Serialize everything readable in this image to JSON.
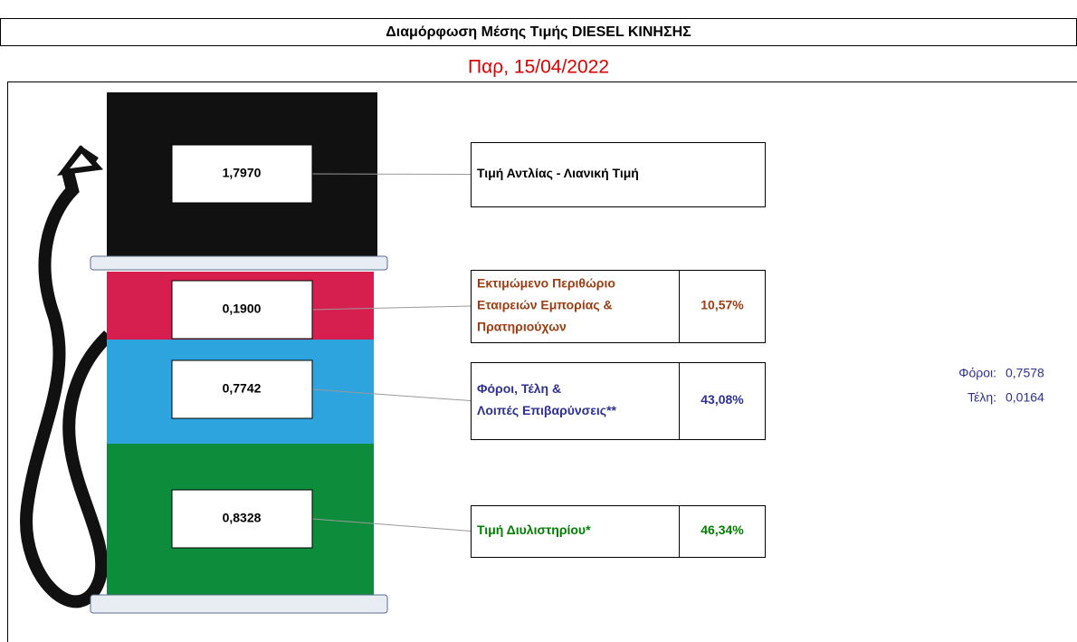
{
  "header": {
    "title": "Διαμόρφωση Μέσης Τιμής  DIESEL ΚΙΝΗΣΗΣ",
    "date": "Παρ, 15/04/2022"
  },
  "items": [
    {
      "value": "1,7970",
      "label": [
        "Τιμή Αντλίας - Λιανική Τιμή"
      ]
    },
    {
      "value": "0,1900",
      "label": [
        "Εκτιμώμενο Περιθώριο",
        "Εταιρειών Εμπορίας &",
        "Πρατηριούχων"
      ],
      "percent": "10,57%"
    },
    {
      "value": "0,7742",
      "label": [
        "Φόροι, Τέλη &",
        "Λοιπές Επιβαρύνσεις**"
      ],
      "percent": "43,08%"
    },
    {
      "value": "0,8328",
      "label": [
        "Τιμή Διυλιστηρίου*"
      ],
      "percent": "46,34%"
    }
  ],
  "notes": [
    {
      "label": "Φόροι:",
      "value": "0,7578"
    },
    {
      "label": "Τέλη:",
      "value": "0,0164"
    }
  ]
}
